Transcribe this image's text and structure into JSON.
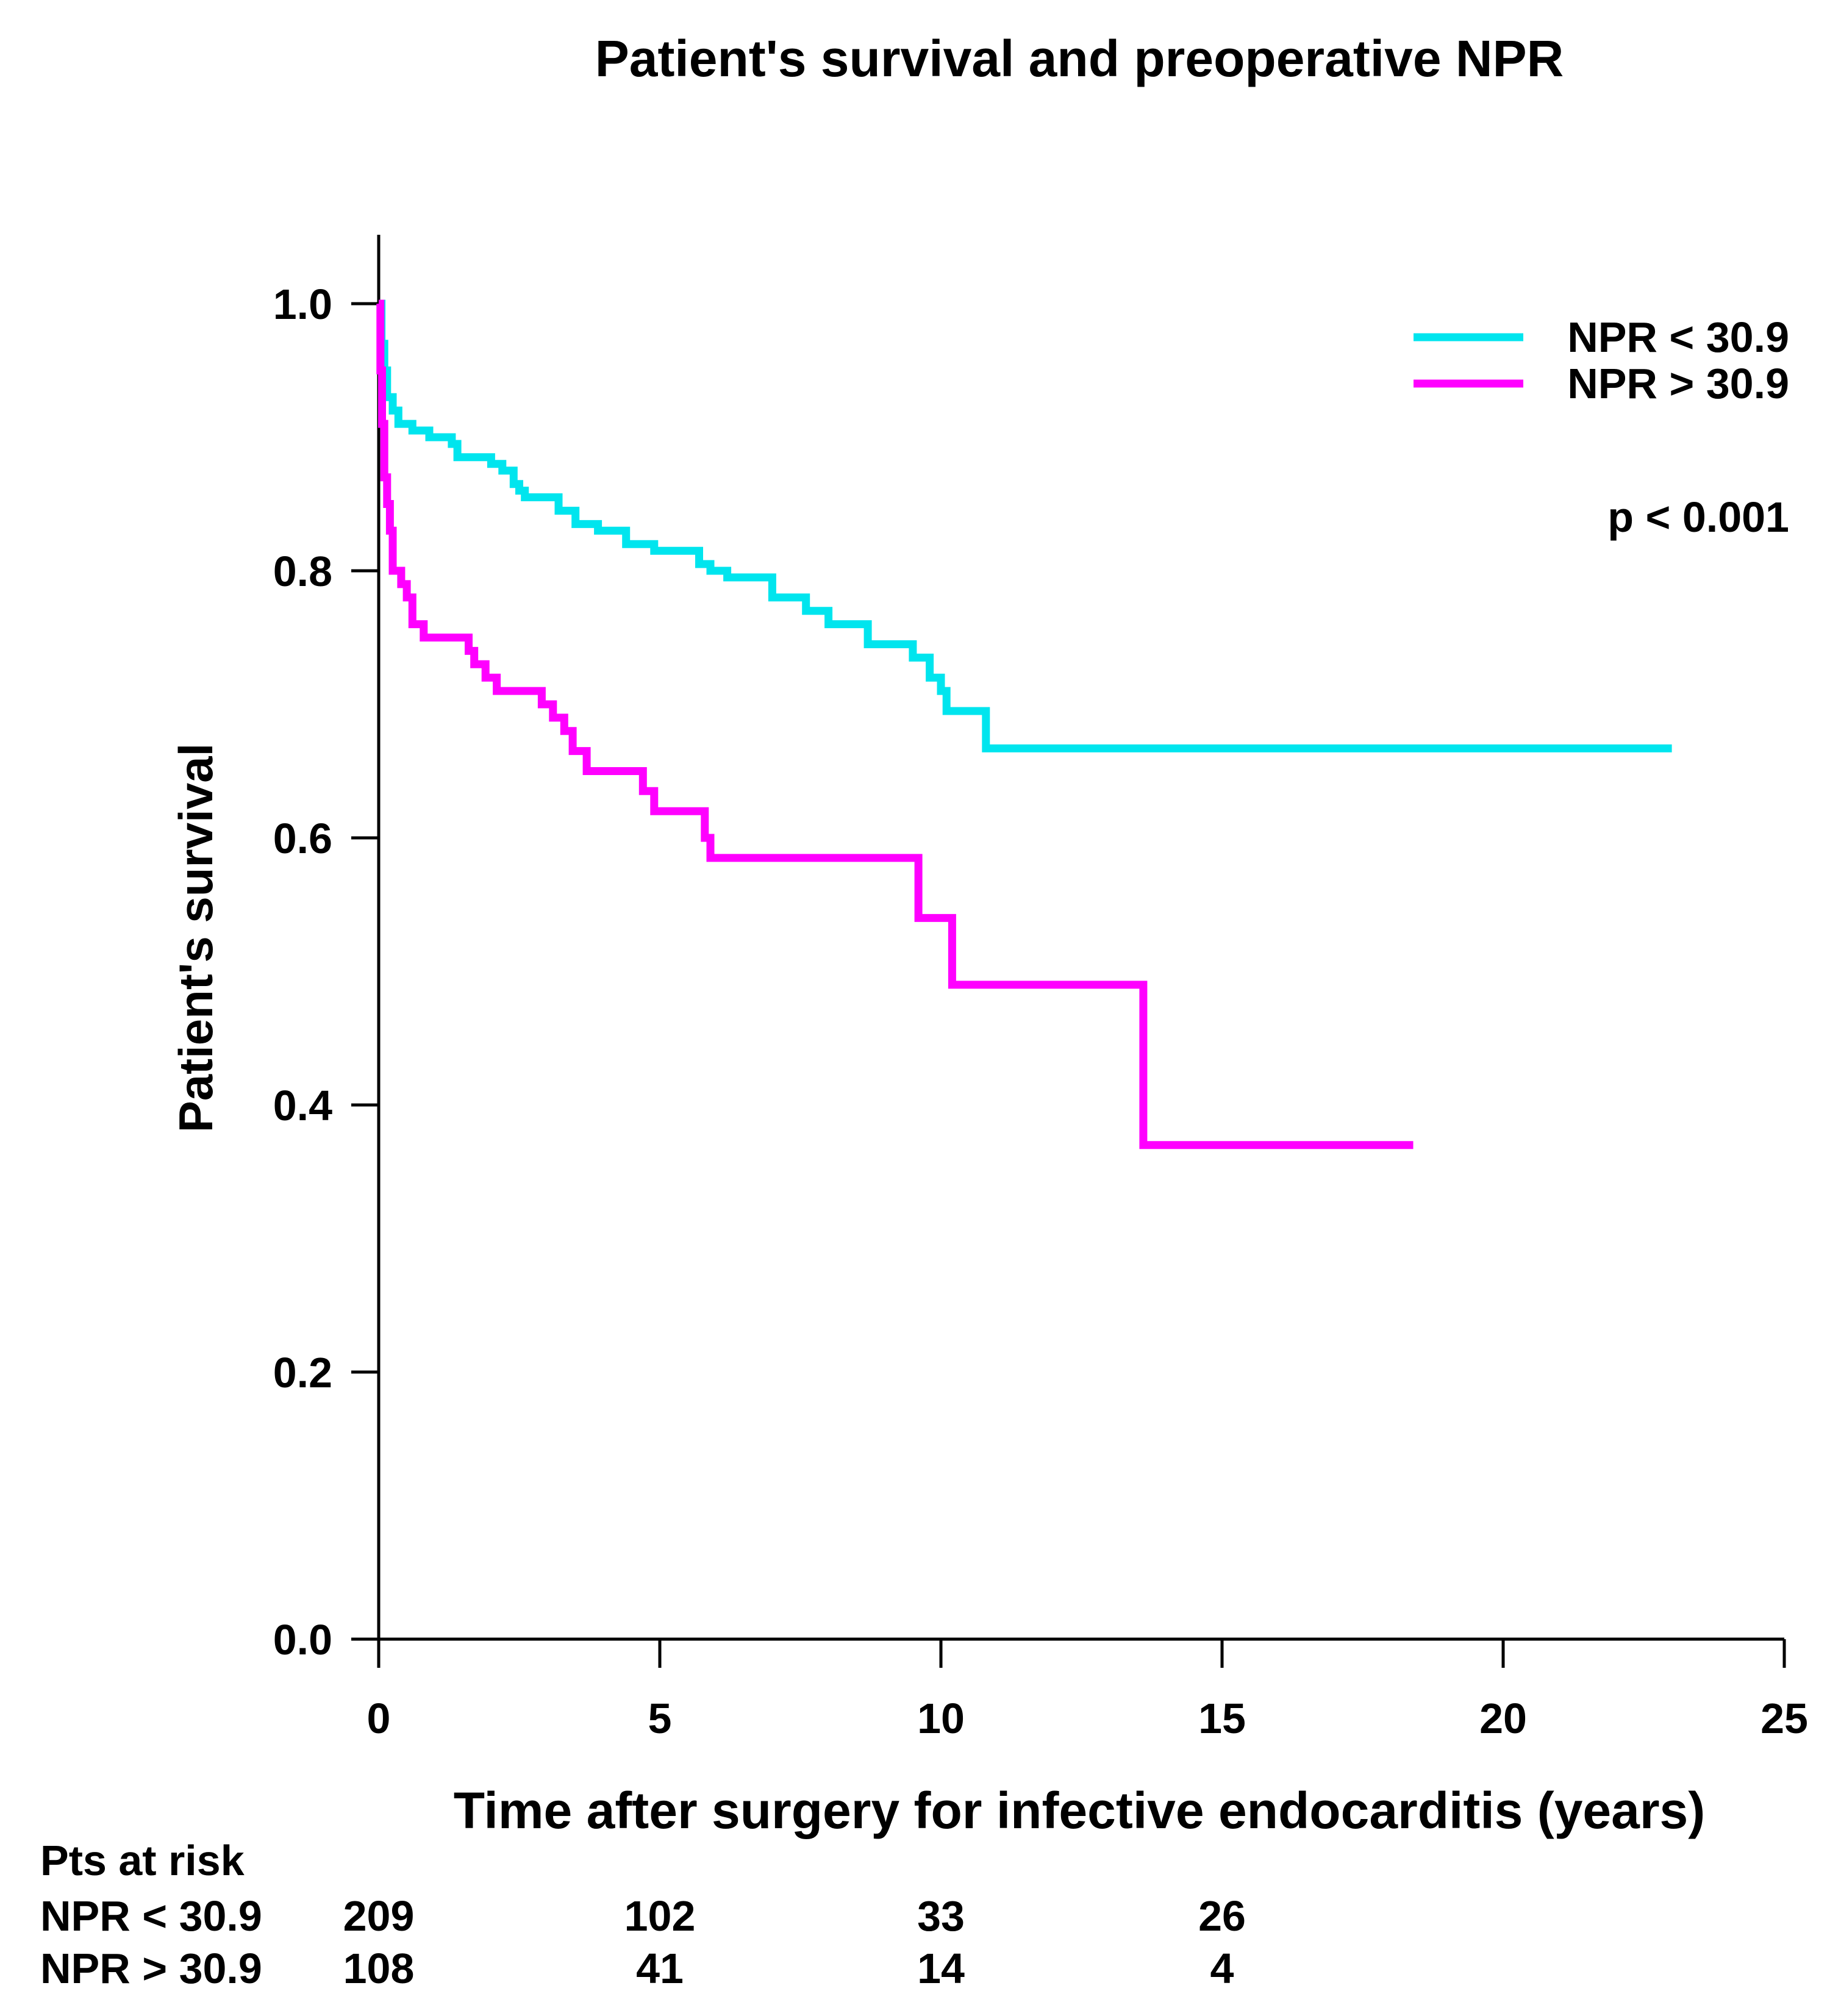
{
  "chart_data": {
    "type": "line",
    "title": "Patient's survival and preoperative NPR",
    "xlabel": "Time after surgery for infective endocarditis (years)",
    "ylabel": "Patient's survival",
    "xlim": [
      0,
      25
    ],
    "ylim": [
      0,
      1.0
    ],
    "xticks": [
      0,
      5,
      10,
      15,
      20,
      25
    ],
    "xtick_labels": [
      "0",
      "5",
      "10",
      "15",
      "20",
      "25"
    ],
    "yticks": [
      0,
      0.2,
      0.4,
      0.6,
      0.8,
      1.0
    ],
    "ytick_labels": [
      "0.0",
      "0.2",
      "0.4",
      "0.6",
      "0.8",
      "1.0"
    ],
    "grid": false,
    "legend_position": "top-right",
    "annotation": "p < 0.001",
    "series": [
      {
        "name": "NPR < 30.9",
        "color": "#00e5ee",
        "steps": [
          [
            0,
            1.0
          ],
          [
            0.05,
            0.97
          ],
          [
            0.1,
            0.95
          ],
          [
            0.15,
            0.93
          ],
          [
            0.25,
            0.92
          ],
          [
            0.35,
            0.91
          ],
          [
            0.6,
            0.905
          ],
          [
            0.9,
            0.9
          ],
          [
            1.3,
            0.895
          ],
          [
            1.4,
            0.885
          ],
          [
            2.0,
            0.88
          ],
          [
            2.2,
            0.875
          ],
          [
            2.4,
            0.865
          ],
          [
            2.5,
            0.86
          ],
          [
            2.6,
            0.855
          ],
          [
            3.2,
            0.845
          ],
          [
            3.5,
            0.835
          ],
          [
            3.9,
            0.83
          ],
          [
            4.4,
            0.82
          ],
          [
            4.9,
            0.815
          ],
          [
            5.7,
            0.805
          ],
          [
            5.9,
            0.8
          ],
          [
            6.2,
            0.795
          ],
          [
            7.0,
            0.78
          ],
          [
            7.6,
            0.77
          ],
          [
            8.0,
            0.76
          ],
          [
            8.7,
            0.745
          ],
          [
            9.5,
            0.735
          ],
          [
            9.8,
            0.72
          ],
          [
            10.0,
            0.71
          ],
          [
            10.1,
            0.695
          ],
          [
            10.8,
            0.667
          ],
          [
            23.0,
            0.667
          ]
        ]
      },
      {
        "name": "NPR > 30.9",
        "color": "#ff00ff",
        "steps": [
          [
            0,
            1.0
          ],
          [
            0.03,
            0.95
          ],
          [
            0.06,
            0.91
          ],
          [
            0.1,
            0.87
          ],
          [
            0.15,
            0.85
          ],
          [
            0.2,
            0.83
          ],
          [
            0.25,
            0.8
          ],
          [
            0.4,
            0.79
          ],
          [
            0.5,
            0.78
          ],
          [
            0.6,
            0.76
          ],
          [
            0.8,
            0.75
          ],
          [
            1.6,
            0.74
          ],
          [
            1.7,
            0.73
          ],
          [
            1.9,
            0.72
          ],
          [
            2.1,
            0.71
          ],
          [
            2.9,
            0.7
          ],
          [
            3.1,
            0.69
          ],
          [
            3.3,
            0.68
          ],
          [
            3.45,
            0.665
          ],
          [
            3.7,
            0.65
          ],
          [
            4.7,
            0.635
          ],
          [
            4.9,
            0.62
          ],
          [
            5.8,
            0.6
          ],
          [
            5.9,
            0.585
          ],
          [
            9.6,
            0.54
          ],
          [
            10.2,
            0.49
          ],
          [
            13.6,
            0.37
          ],
          [
            18.4,
            0.37
          ]
        ]
      }
    ],
    "risk_table": {
      "header": "Pts at risk",
      "times": [
        0,
        5,
        10,
        15
      ],
      "rows": [
        {
          "label": "NPR < 30.9",
          "values": [
            "209",
            "102",
            "33",
            "26"
          ]
        },
        {
          "label": "NPR > 30.9",
          "values": [
            "108",
            "41",
            "14",
            "4"
          ]
        }
      ]
    }
  }
}
